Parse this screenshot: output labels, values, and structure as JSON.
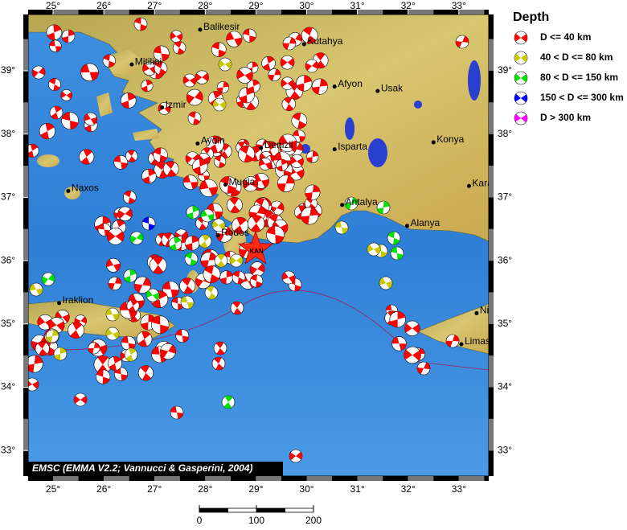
{
  "map": {
    "lon_ticks": [
      {
        "value": 25,
        "label": "25°"
      },
      {
        "value": 26,
        "label": "26°"
      },
      {
        "value": 27,
        "label": "27°"
      },
      {
        "value": 28,
        "label": "28°"
      },
      {
        "value": 29,
        "label": "29°"
      },
      {
        "value": 30,
        "label": "30°"
      },
      {
        "value": 31,
        "label": "31°"
      },
      {
        "value": 32,
        "label": "32°"
      },
      {
        "value": 33,
        "label": "33°"
      }
    ],
    "lat_ticks": [
      {
        "value": 33,
        "label": "33°"
      },
      {
        "value": 34,
        "label": "34°"
      },
      {
        "value": 35,
        "label": "35°"
      },
      {
        "value": 36,
        "label": "36°"
      },
      {
        "value": 37,
        "label": "37°"
      },
      {
        "value": 38,
        "label": "38°"
      },
      {
        "value": 39,
        "label": "39°"
      }
    ],
    "cities": [
      "Balikesir",
      "Kutahya",
      "Mitilini",
      "Afyon",
      "Usak",
      "Izmir",
      "Aydin",
      "Denizli",
      "Isparta",
      "Konya",
      "Naxos",
      "Mugla",
      "Karaman",
      "Antalya",
      "Alanya",
      "Rodos",
      "Iraklion",
      "Nicosia",
      "Limassol"
    ],
    "epicenter_label": "KAN",
    "credit": "EMSC (EMMA V2.2; Vannucci & Gasperini, 2004)",
    "legend": {
      "title": "Depth",
      "items": [
        {
          "label": "D <= 40 km",
          "color": "#ff0000"
        },
        {
          "label": "40 < D <= 80 km",
          "color": "#c8c800"
        },
        {
          "label": "80 < D <= 150 km",
          "color": "#00e000"
        },
        {
          "label": "150 < D <= 300 km",
          "color": "#0000ff"
        },
        {
          "label": "D > 300 km",
          "color": "#ff00ff"
        }
      ]
    },
    "scale_bar": {
      "ticks": [
        0,
        100,
        200
      ]
    }
  }
}
